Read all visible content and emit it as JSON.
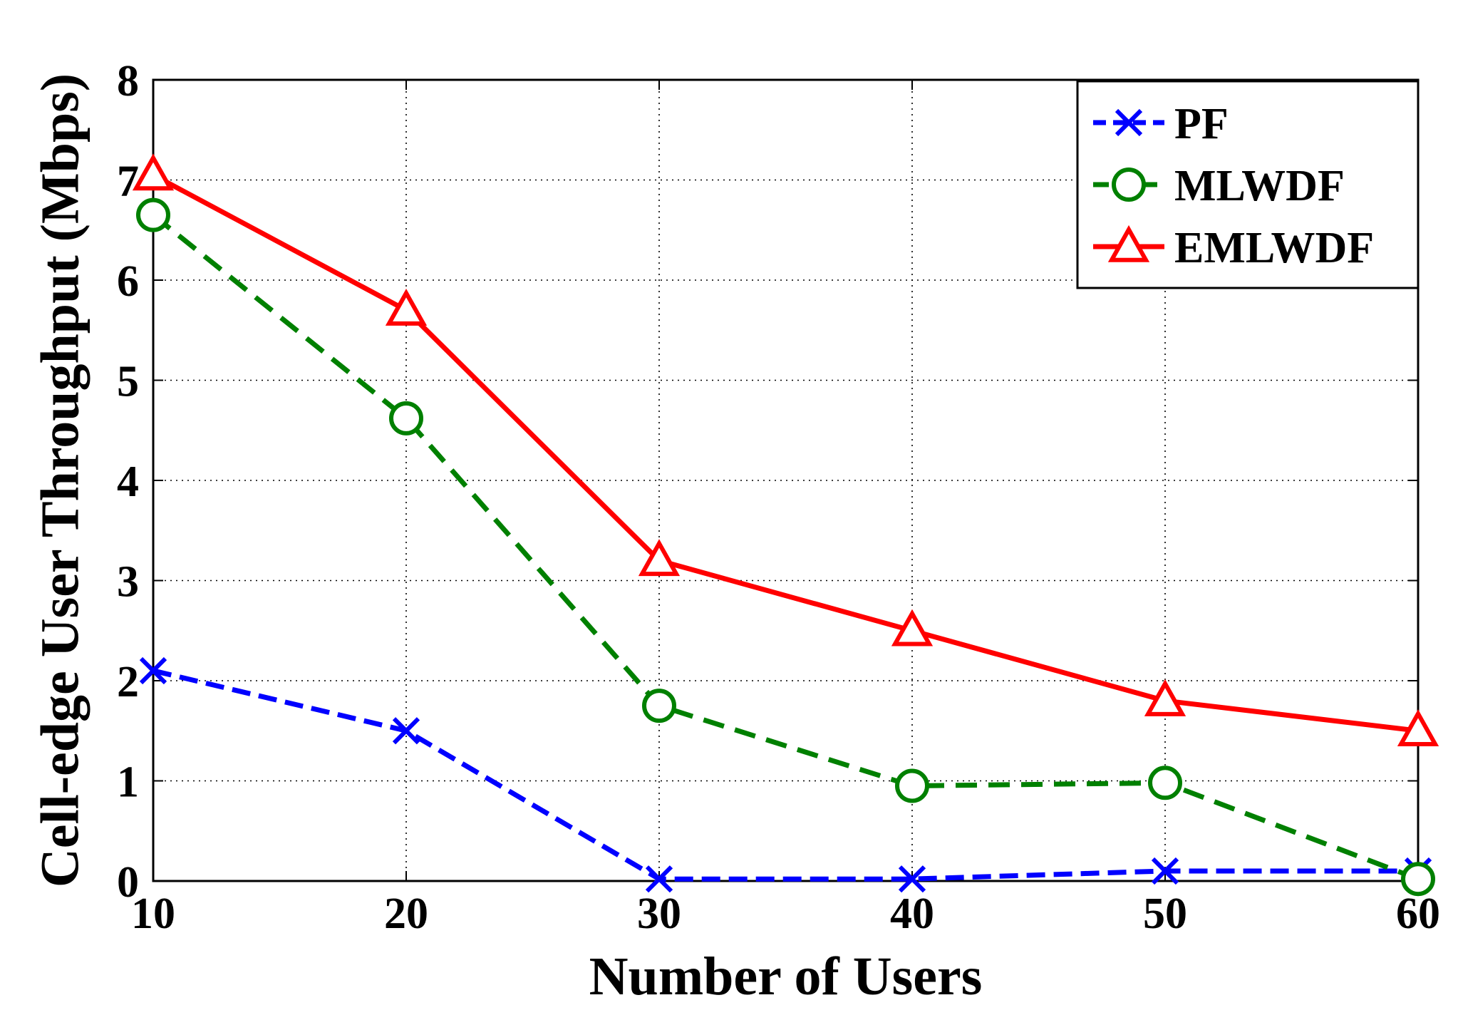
{
  "chart_data": {
    "type": "line",
    "title": "",
    "xlabel": "Number of Users",
    "ylabel": "Cell-edge User Throughput (Mbps)",
    "x": [
      10,
      20,
      30,
      40,
      50,
      60
    ],
    "xlim": [
      10,
      60
    ],
    "ylim": [
      0,
      8
    ],
    "xticks": [
      "10",
      "20",
      "30",
      "40",
      "50",
      "60"
    ],
    "yticks": [
      "0",
      "1",
      "2",
      "3",
      "4",
      "5",
      "6",
      "7",
      "8"
    ],
    "grid": true,
    "legend_position": "top-right",
    "series": [
      {
        "name": "PF",
        "color": "#0000ff",
        "line": "dash-dot",
        "marker": "x",
        "values": [
          2.1,
          1.5,
          0.02,
          0.02,
          0.1,
          0.1
        ]
      },
      {
        "name": "MLWDF",
        "color": "#008000",
        "line": "dashed",
        "marker": "circle",
        "values": [
          6.65,
          4.62,
          1.75,
          0.95,
          0.98,
          0.02
        ]
      },
      {
        "name": "EMLWDF",
        "color": "#ff0000",
        "line": "solid",
        "marker": "triangle",
        "values": [
          7.05,
          5.7,
          3.2,
          2.5,
          1.8,
          1.5
        ]
      }
    ]
  }
}
